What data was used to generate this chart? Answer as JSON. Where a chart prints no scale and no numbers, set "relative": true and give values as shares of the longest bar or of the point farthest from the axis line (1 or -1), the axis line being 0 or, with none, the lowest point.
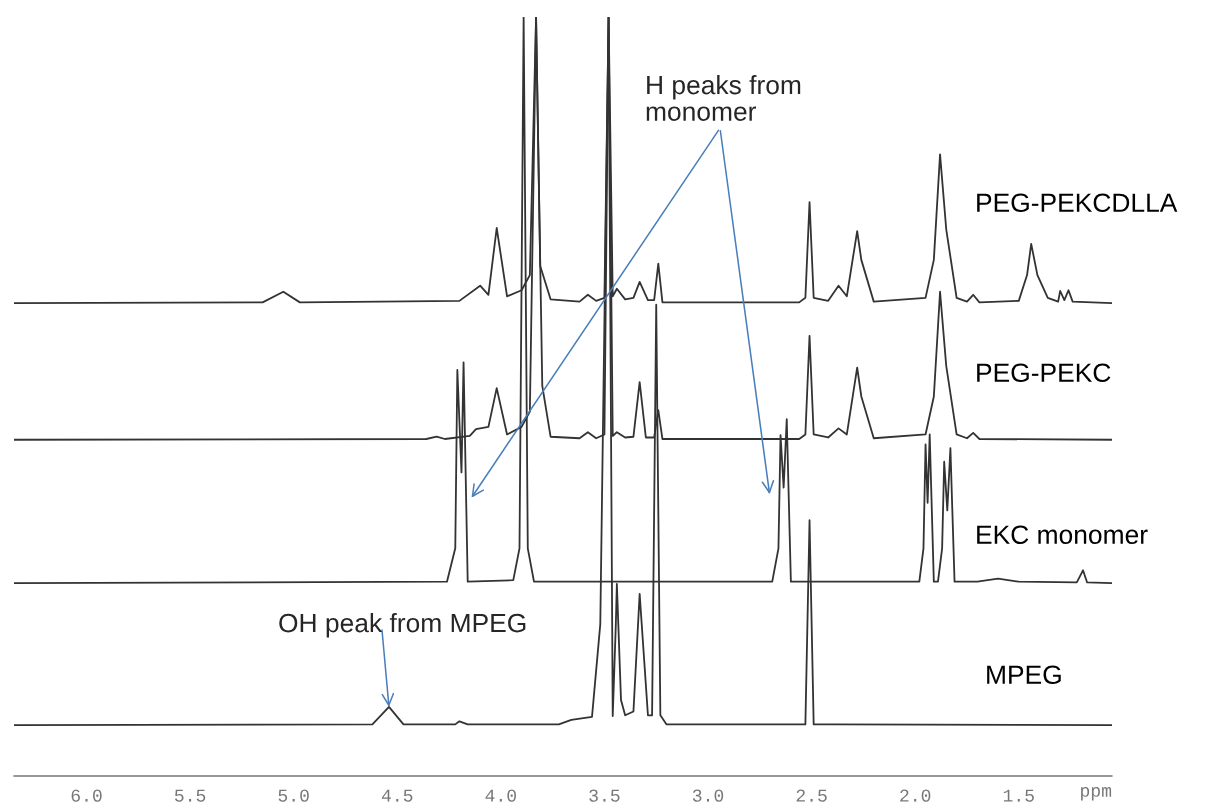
{
  "chart_data": {
    "type": "line",
    "relative": true,
    "xlabel": "ppm",
    "xlim": [
      6.35,
      1.05
    ],
    "xticks": [
      {
        "value": 6.0,
        "label": "6.0"
      },
      {
        "value": 5.5,
        "label": "5.5"
      },
      {
        "value": 5.0,
        "label": "5.0"
      },
      {
        "value": 4.5,
        "label": "4.5"
      },
      {
        "value": 4.0,
        "label": "4.0"
      },
      {
        "value": 3.5,
        "label": "3.5"
      },
      {
        "value": 3.0,
        "label": "3.0"
      },
      {
        "value": 2.5,
        "label": "2.5"
      },
      {
        "value": 2.0,
        "label": "2.0"
      },
      {
        "value": 1.5,
        "label": "1.5"
      }
    ],
    "grid": false,
    "legend": false,
    "series": [
      {
        "name": "PEG-PEKCDLLA",
        "color": "#333333",
        "x": [
          6.35,
          5.15,
          5.05,
          4.97,
          4.2,
          4.1,
          4.06,
          4.02,
          3.97,
          3.9,
          3.86,
          3.83,
          3.81,
          3.76,
          3.62,
          3.58,
          3.54,
          3.5,
          3.48,
          3.46,
          3.44,
          3.4,
          3.36,
          3.33,
          3.29,
          3.26,
          3.24,
          3.22,
          2.56,
          2.53,
          2.51,
          2.49,
          2.42,
          2.37,
          2.33,
          2.28,
          2.26,
          2.2,
          1.95,
          1.91,
          1.88,
          1.85,
          1.8,
          1.75,
          1.72,
          1.69,
          1.5,
          1.46,
          1.44,
          1.41,
          1.36,
          1.31,
          1.3,
          1.28,
          1.26,
          1.24,
          1.05
        ],
        "values": [
          0.623,
          0.624,
          0.638,
          0.624,
          0.626,
          0.646,
          0.634,
          0.722,
          0.632,
          0.64,
          0.66,
          1.0,
          0.672,
          0.628,
          0.625,
          0.634,
          0.626,
          0.63,
          1.0,
          0.632,
          0.642,
          0.628,
          0.63,
          0.651,
          0.627,
          0.627,
          0.675,
          0.624,
          0.624,
          0.63,
          0.756,
          0.63,
          0.626,
          0.646,
          0.632,
          0.718,
          0.68,
          0.625,
          0.63,
          0.68,
          0.819,
          0.72,
          0.63,
          0.625,
          0.634,
          0.624,
          0.626,
          0.66,
          0.701,
          0.66,
          0.63,
          0.625,
          0.639,
          0.627,
          0.64,
          0.625,
          0.623
        ]
      },
      {
        "name": "PEG-PEKC",
        "color": "#333333",
        "x": [
          6.35,
          4.36,
          4.31,
          4.27,
          4.15,
          4.12,
          4.06,
          4.02,
          3.97,
          3.9,
          3.86,
          3.83,
          3.8,
          3.76,
          3.62,
          3.58,
          3.54,
          3.5,
          3.48,
          3.46,
          3.44,
          3.4,
          3.36,
          3.33,
          3.3,
          3.26,
          3.24,
          3.22,
          2.56,
          2.53,
          2.51,
          2.49,
          2.42,
          2.37,
          2.33,
          2.28,
          2.26,
          2.2,
          1.95,
          1.91,
          1.88,
          1.85,
          1.8,
          1.75,
          1.72,
          1.69,
          1.05
        ],
        "values": [
          0.443,
          0.444,
          0.447,
          0.444,
          0.448,
          0.457,
          0.46,
          0.511,
          0.45,
          0.46,
          0.48,
          1.0,
          0.514,
          0.447,
          0.445,
          0.453,
          0.445,
          0.45,
          1.0,
          0.448,
          0.453,
          0.446,
          0.447,
          0.519,
          0.446,
          0.446,
          0.482,
          0.444,
          0.444,
          0.45,
          0.58,
          0.45,
          0.446,
          0.458,
          0.45,
          0.538,
          0.5,
          0.445,
          0.45,
          0.5,
          0.638,
          0.54,
          0.45,
          0.445,
          0.452,
          0.444,
          0.443
        ]
      },
      {
        "name": "EKC monomer",
        "color": "#333333",
        "x": [
          6.35,
          4.26,
          4.22,
          4.21,
          4.19,
          4.18,
          4.16,
          3.94,
          3.91,
          3.89,
          3.87,
          3.84,
          2.69,
          2.66,
          2.65,
          2.635,
          2.62,
          2.6,
          1.98,
          1.96,
          1.95,
          1.94,
          1.93,
          1.91,
          1.89,
          1.87,
          1.86,
          1.845,
          1.83,
          1.81,
          1.7,
          1.6,
          1.5,
          1.22,
          1.19,
          1.17,
          1.05
        ],
        "values": [
          0.254,
          0.256,
          0.3,
          0.535,
          0.4,
          0.545,
          0.256,
          0.258,
          0.3,
          1.0,
          0.3,
          0.256,
          0.256,
          0.3,
          0.449,
          0.38,
          0.47,
          0.256,
          0.256,
          0.3,
          0.437,
          0.36,
          0.45,
          0.256,
          0.256,
          0.3,
          0.414,
          0.35,
          0.432,
          0.256,
          0.256,
          0.26,
          0.256,
          0.255,
          0.271,
          0.255,
          0.254
        ]
      },
      {
        "name": "MPEG",
        "color": "#333333",
        "x": [
          6.35,
          4.62,
          4.54,
          4.47,
          4.22,
          4.2,
          4.16,
          3.72,
          3.66,
          3.56,
          3.52,
          3.48,
          3.46,
          3.445,
          3.44,
          3.42,
          3.4,
          3.36,
          3.33,
          3.32,
          3.29,
          3.27,
          3.25,
          3.23,
          3.2,
          2.53,
          2.51,
          2.49,
          2.4,
          1.05
        ],
        "values": [
          0.067,
          0.068,
          0.091,
          0.068,
          0.068,
          0.072,
          0.068,
          0.068,
          0.074,
          0.078,
          0.2,
          1.0,
          0.079,
          0.2,
          0.253,
          0.1,
          0.08,
          0.085,
          0.24,
          0.2,
          0.08,
          0.08,
          0.621,
          0.08,
          0.068,
          0.068,
          0.337,
          0.068,
          0.068,
          0.067
        ]
      }
    ],
    "annotations": [
      "H peaks from\nmonomer",
      {
        "text": "OH peak from MPEG",
        "x": 4.54,
        "y": 0.091
      }
    ]
  }
}
